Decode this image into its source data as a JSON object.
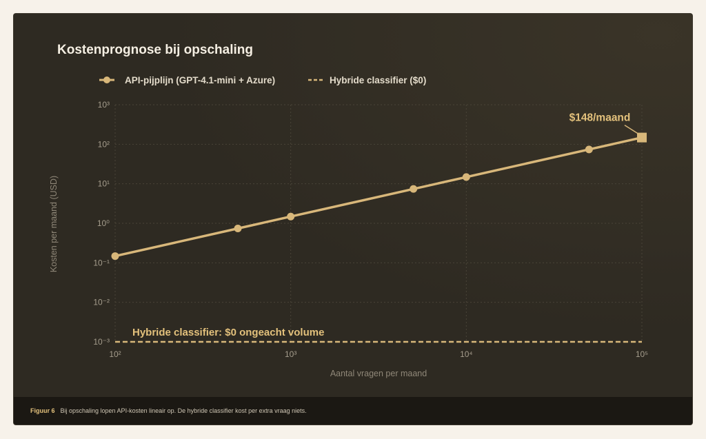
{
  "colors": {
    "accent": "#d8b77a",
    "background": "#2e2a22",
    "caption_bg": "#1b1813",
    "title": "#f5efe3",
    "axis_text": "#8f8778",
    "tick_text": "#a59d8d"
  },
  "chart_data": {
    "type": "line",
    "title": "Kostenprognose bij opschaling",
    "xlabel": "Aantal vragen per maand",
    "ylabel": "Kosten per maand (USD)",
    "xscale": "log",
    "yscale": "log",
    "xlim": [
      100,
      100000
    ],
    "ylim": [
      0.001,
      1000
    ],
    "x_ticks": [
      "10²",
      "10³",
      "10⁴",
      "10⁵"
    ],
    "y_ticks": [
      "10³",
      "10²",
      "10¹",
      "10⁰",
      "10⁻¹",
      "10⁻²",
      "10⁻³"
    ],
    "grid": true,
    "legend_position": "top-left",
    "series": [
      {
        "name": "API-pijplijn (GPT-4.1-mini + Azure)",
        "style": "solid-markers",
        "x": [
          100,
          500,
          1000,
          5000,
          10000,
          50000,
          100000
        ],
        "y": [
          0.148,
          0.74,
          1.48,
          7.4,
          14.8,
          74,
          148
        ]
      },
      {
        "name": "Hybride classifier ($0)",
        "style": "dashed",
        "x": [
          100,
          100000
        ],
        "y": [
          0.001,
          0.001
        ]
      }
    ],
    "annotations": [
      {
        "text": "$148/maand",
        "x": 100000,
        "y": 148
      },
      {
        "text": "Hybride classifier: $0 ongeacht volume",
        "x": 100,
        "y": 0.001
      }
    ]
  },
  "caption": {
    "label": "Figuur 6",
    "text": "Bij opschaling lopen API-kosten lineair op. De hybride classifier kost per extra vraag niets."
  }
}
